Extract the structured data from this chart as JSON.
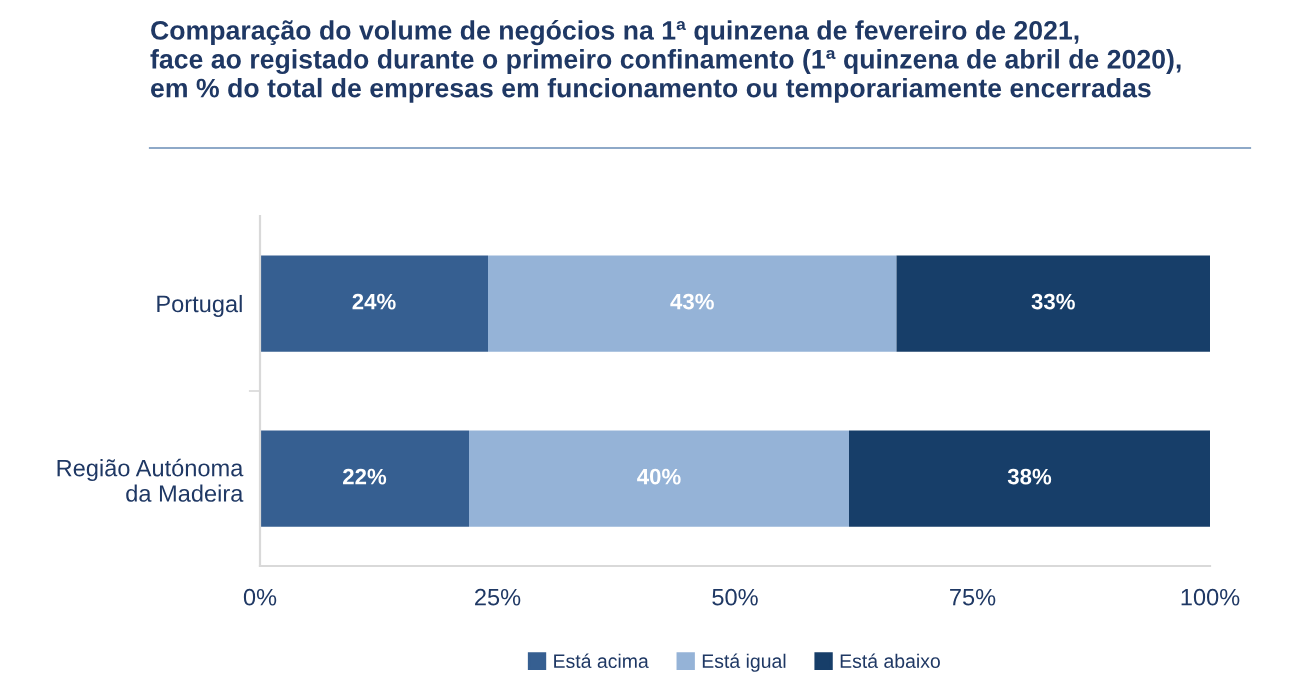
{
  "chart_data": {
    "type": "bar",
    "orientation": "horizontal",
    "stacked": true,
    "title": "Comparação do volume de negócios na 1ª quinzena de fevereiro de 2021,\nface ao registado durante o primeiro confinamento (1ª quinzena de abril de 2020),\nem % do total de empresas em funcionamento ou temporariamente encerradas",
    "categories": [
      "Portugal",
      "Região Autónoma\nda Madeira"
    ],
    "series": [
      {
        "name": "Está acima",
        "color": "#365f91",
        "values": [
          24,
          22
        ],
        "value_labels": [
          "24%",
          "22%"
        ]
      },
      {
        "name": "Está igual",
        "color": "#95b3d7",
        "values": [
          43,
          40
        ],
        "value_labels": [
          "43%",
          "40%"
        ]
      },
      {
        "name": "Está abaixo",
        "color": "#173e69",
        "values": [
          33,
          38
        ],
        "value_labels": [
          "33%",
          "38%"
        ]
      }
    ],
    "xlim": [
      0,
      100
    ],
    "xticks": [
      {
        "value": 0,
        "label": "0%"
      },
      {
        "value": 25,
        "label": "25%"
      },
      {
        "value": 50,
        "label": "50%"
      },
      {
        "value": 75,
        "label": "75%"
      },
      {
        "value": 100,
        "label": "100%"
      }
    ],
    "grid": false,
    "legend": "bottom"
  }
}
